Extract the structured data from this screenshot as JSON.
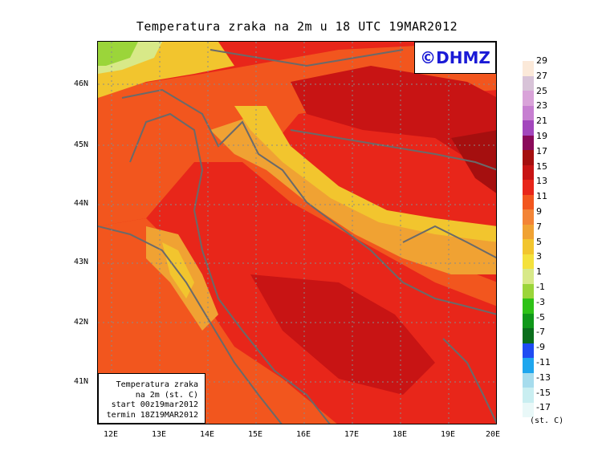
{
  "title": "Temperatura zraka na 2m u 18 UTC 19MAR2012",
  "logo": "©DHMZ",
  "infobox": [
    "Temperatura zraka",
    "na 2m (st. C)",
    "start 00z19mar2012",
    "termin 18Z19MAR2012"
  ],
  "lat_labels": [
    "46N",
    "45N",
    "44N",
    "43N",
    "42N",
    "41N"
  ],
  "lon_labels": [
    "12E",
    "13E",
    "14E",
    "15E",
    "16E",
    "17E",
    "18E",
    "19E",
    "20E"
  ],
  "legend": {
    "values": [
      "29",
      "27",
      "25",
      "23",
      "21",
      "19",
      "17",
      "15",
      "13",
      "11",
      "9",
      "7",
      "5",
      "3",
      "1",
      "-1",
      "-3",
      "-5",
      "-7",
      "-9",
      "-11",
      "-13",
      "-15",
      "-17"
    ],
    "colors": [
      "#fbe9d9",
      "#d8c3d8",
      "#d9a3d9",
      "#c77fd1",
      "#a347bd",
      "#8a0a5a",
      "#a50f0f",
      "#c81414",
      "#e8261a",
      "#f2561e",
      "#f38436",
      "#f0a233",
      "#f2c52e",
      "#f4e13c",
      "#d8e988",
      "#9bd53a",
      "#2ec217",
      "#10981a",
      "#0a6e1c",
      "#1f4cf2",
      "#1ea6ee",
      "#a6dced",
      "#c9eef1",
      "#e9f8f8"
    ],
    "units": "(st. C)"
  }
}
